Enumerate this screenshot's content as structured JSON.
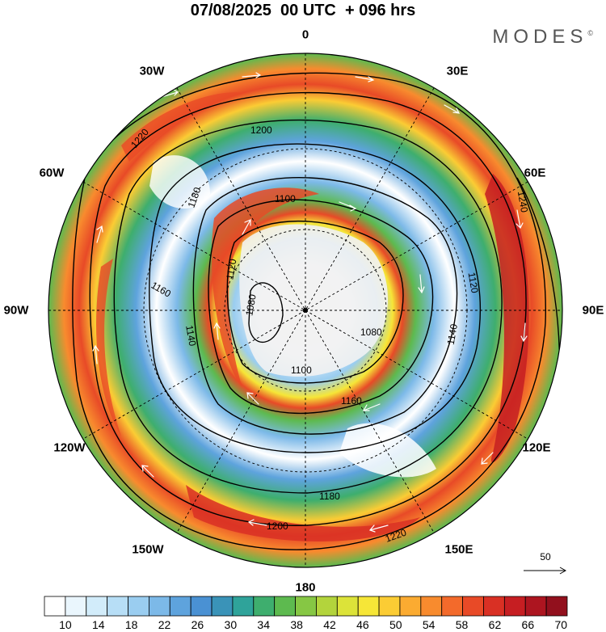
{
  "header": {
    "title": "07/08/2025  00 UTC  + 096 hrs",
    "brand": "MODES",
    "brand_mark": "©"
  },
  "map": {
    "projection": "south polar stereographic",
    "longitude_labels": [
      {
        "id": "lon-0",
        "text": "0"
      },
      {
        "id": "lon-30e",
        "text": "30E"
      },
      {
        "id": "lon-60e",
        "text": "60E"
      },
      {
        "id": "lon-90e",
        "text": "90E"
      },
      {
        "id": "lon-120e",
        "text": "120E"
      },
      {
        "id": "lon-150e",
        "text": "150E"
      },
      {
        "id": "lon-180",
        "text": "180"
      },
      {
        "id": "lon-150w",
        "text": "150W"
      },
      {
        "id": "lon-120w",
        "text": "120W"
      },
      {
        "id": "lon-90w",
        "text": "90W"
      },
      {
        "id": "lon-60w",
        "text": "60W"
      },
      {
        "id": "lon-30w",
        "text": "30W"
      }
    ],
    "contours": [
      {
        "value": "1080"
      },
      {
        "value": "1100"
      },
      {
        "value": "1120"
      },
      {
        "value": "1140"
      },
      {
        "value": "1160"
      },
      {
        "value": "1180"
      },
      {
        "value": "1200"
      },
      {
        "value": "1220"
      },
      {
        "value": "1240"
      }
    ],
    "vector_reference": "50"
  },
  "colorbar": {
    "labels": [
      "10",
      "14",
      "18",
      "22",
      "26",
      "30",
      "34",
      "38",
      "42",
      "46",
      "50",
      "54",
      "58",
      "62",
      "66",
      "70"
    ],
    "colors": [
      "#ffffff",
      "#eaf6fd",
      "#d2ecfa",
      "#b7def6",
      "#9acdf0",
      "#7cb9e8",
      "#5ea3dd",
      "#4a91d3",
      "#3a93b8",
      "#2fa39a",
      "#3eae6e",
      "#5dba4f",
      "#86c744",
      "#b3d43c",
      "#dce339",
      "#f6e637",
      "#fbcc34",
      "#fbab31",
      "#f88b2e",
      "#f36a2b",
      "#e84a27",
      "#d93024",
      "#c61e22",
      "#ad1520",
      "#92101d"
    ]
  }
}
